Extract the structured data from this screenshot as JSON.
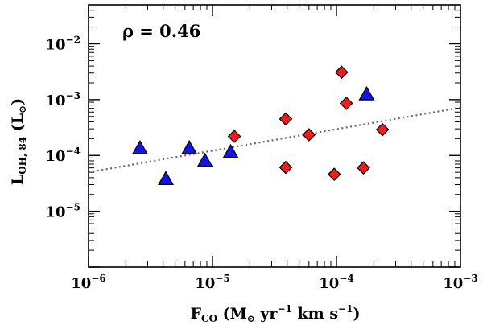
{
  "chart_data": {
    "type": "scatter",
    "xscale": "log",
    "yscale": "log",
    "xlim": [
      1e-06,
      0.001
    ],
    "ylim": [
      1e-06,
      0.05
    ],
    "annotation": "ρ = 0.46",
    "xlabel": {
      "main": "F",
      "main_sub": "CO",
      "paren_open": " (M",
      "sun_symbol": "⊙",
      "units_a": " yr",
      "exp_a": "−1",
      "units_b": " km s",
      "exp_b": "−1",
      "paren_close": ")"
    },
    "ylabel": {
      "main": "L",
      "main_sub": "OH, 84",
      "paren_open": " (L",
      "sun_symbol": "⊙",
      "paren_close": ")"
    },
    "xticks": [
      {
        "value": 1e-06,
        "base": "10",
        "exp": "−6"
      },
      {
        "value": 1e-05,
        "base": "10",
        "exp": "−5"
      },
      {
        "value": 0.0001,
        "base": "10",
        "exp": "−4"
      },
      {
        "value": 0.001,
        "base": "10",
        "exp": "−3"
      }
    ],
    "yticks": [
      {
        "value": 1e-05,
        "base": "10",
        "exp": "−5"
      },
      {
        "value": 0.0001,
        "base": "10",
        "exp": "−4"
      },
      {
        "value": 0.001,
        "base": "10",
        "exp": "−3"
      },
      {
        "value": 0.01,
        "base": "10",
        "exp": "−2"
      }
    ],
    "fit_line": {
      "x": [
        1e-06,
        0.001
      ],
      "y": [
        5e-05,
        0.00072
      ],
      "style": "dotted",
      "color": "#666666"
    },
    "series": [
      {
        "name": "triangles",
        "marker": "triangle",
        "color": "#1515e0",
        "points": [
          {
            "x": 2.6e-06,
            "y": 0.000135
          },
          {
            "x": 4.2e-06,
            "y": 3.8e-05
          },
          {
            "x": 6.5e-06,
            "y": 0.000135
          },
          {
            "x": 8.7e-06,
            "y": 8e-05
          },
          {
            "x": 1.4e-05,
            "y": 0.000115
          },
          {
            "x": 0.000175,
            "y": 0.00125
          }
        ]
      },
      {
        "name": "diamonds",
        "marker": "diamond",
        "color": "#ee1c1c",
        "points": [
          {
            "x": 1.5e-05,
            "y": 0.00022
          },
          {
            "x": 3.9e-05,
            "y": 0.00045
          },
          {
            "x": 3.9e-05,
            "y": 6.1e-05
          },
          {
            "x": 6e-05,
            "y": 0.000235
          },
          {
            "x": 9.6e-05,
            "y": 4.6e-05
          },
          {
            "x": 0.00011,
            "y": 0.0031
          },
          {
            "x": 0.00012,
            "y": 0.00086
          },
          {
            "x": 0.000165,
            "y": 6e-05
          },
          {
            "x": 0.000235,
            "y": 0.00029
          }
        ]
      }
    ]
  }
}
